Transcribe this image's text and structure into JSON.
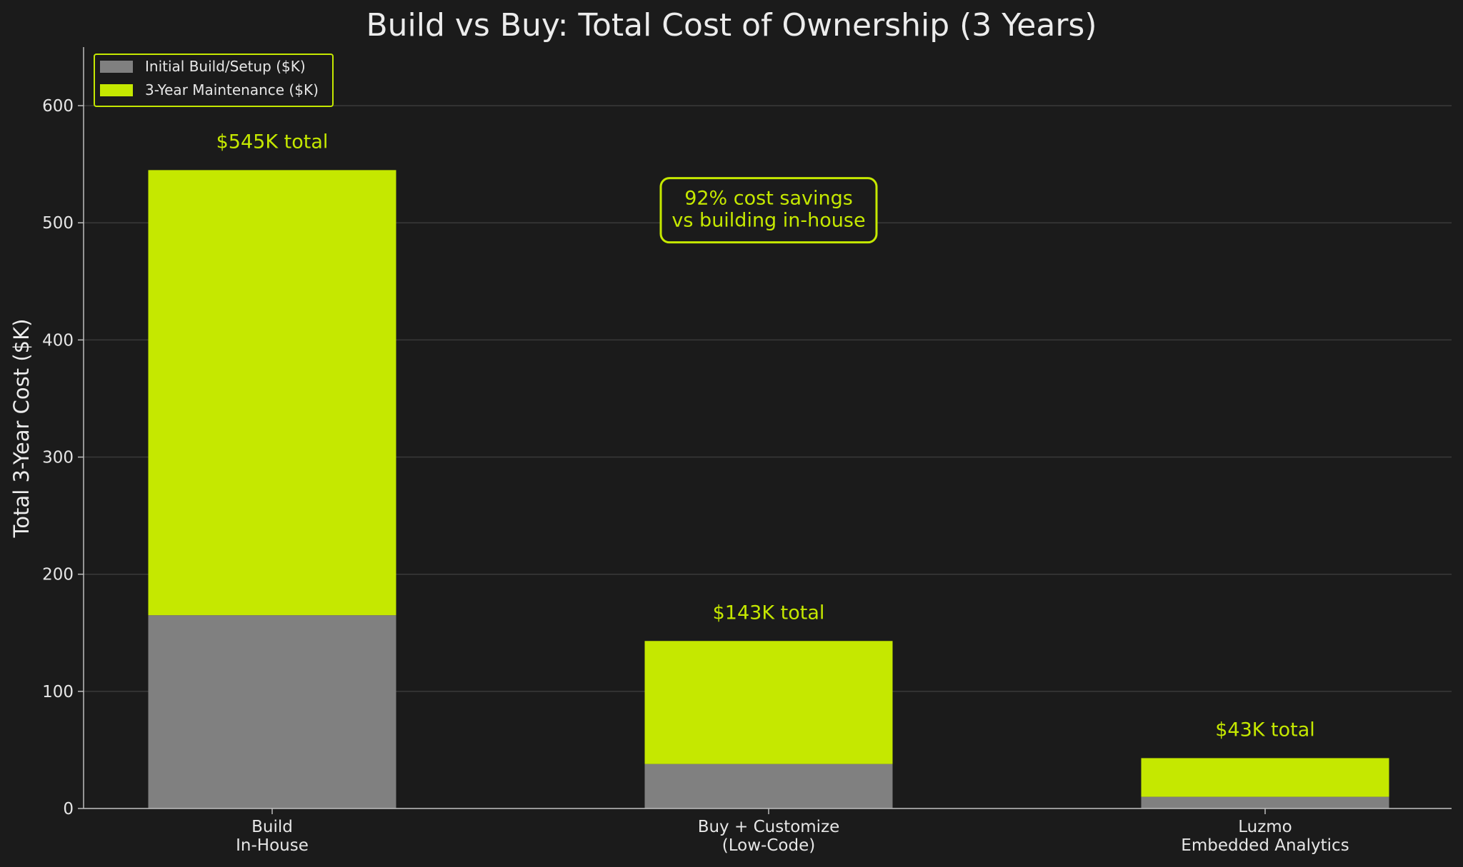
{
  "chart_data": {
    "type": "bar",
    "stacked": true,
    "title": "Build vs Buy: Total Cost of Ownership (3 Years)",
    "xlabel": "",
    "ylabel": "Total 3-Year Cost ($K)",
    "ylim": [
      0,
      650
    ],
    "yticks": [
      0,
      100,
      200,
      300,
      400,
      500,
      600
    ],
    "grid": true,
    "legend_position": "top-left",
    "categories": [
      [
        "Build",
        "In-House"
      ],
      [
        "Buy + Customize",
        "(Low-Code)"
      ],
      [
        "Luzmo",
        "Embedded Analytics"
      ]
    ],
    "series": [
      {
        "name": "Initial Build/Setup ($K)",
        "color": "#808080",
        "values": [
          165,
          38,
          10
        ]
      },
      {
        "name": "3-Year Maintenance ($K)",
        "color": "#c5e800",
        "values": [
          380,
          105,
          33
        ]
      }
    ],
    "total_labels": [
      "$545K total",
      "$143K total",
      "$43K total"
    ],
    "annotation": {
      "lines": [
        "92% cost savings",
        "vs building in-house"
      ],
      "anchor_category": 1,
      "anchor_value": 504
    },
    "colors": {
      "background": "#1b1b1b",
      "accent": "#c5e800",
      "gray": "#808080",
      "grid": "#3a3a3a",
      "axis": "#bdbdbd",
      "text": "#e6e6e6"
    }
  }
}
